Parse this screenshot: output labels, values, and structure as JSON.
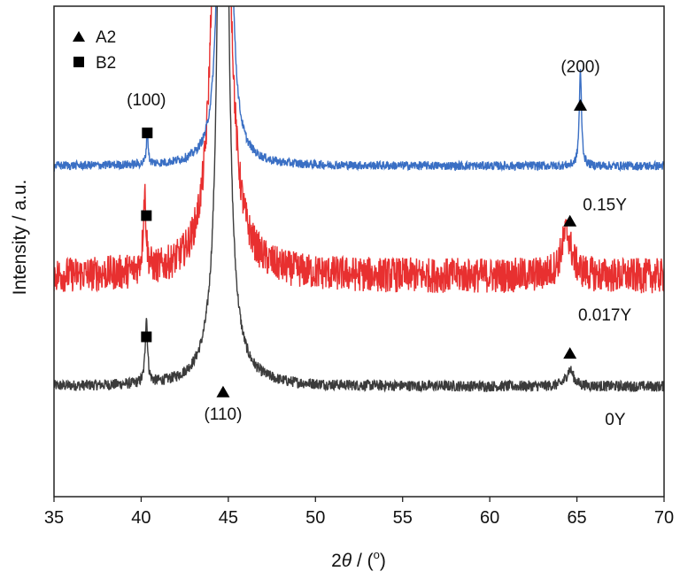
{
  "chart_data": {
    "type": "line",
    "title": "",
    "xlabel": "2θ / (°)",
    "xlabel_parts": {
      "var": "2",
      "theta": "θ",
      "rest": " / (",
      "deg": "o",
      "close": ")"
    },
    "ylabel": "Intensity / a.u.",
    "xlim": [
      35,
      70
    ],
    "xticks": [
      35,
      40,
      45,
      50,
      55,
      60,
      65,
      70
    ],
    "yticks_shown": false,
    "grid": false,
    "legend": {
      "placement": "top-left",
      "entries": [
        {
          "marker": "triangle",
          "label": "A2"
        },
        {
          "marker": "square",
          "label": "B2"
        }
      ]
    },
    "series": [
      {
        "name": "0Y",
        "color": "#3b3b3b",
        "baseline": 1.0,
        "noise": 0.05,
        "peaks": [
          {
            "x": 40.3,
            "height": 0.6,
            "width": 0.08
          },
          {
            "x": 44.7,
            "height": 21.0,
            "width": 0.12
          },
          {
            "x": 44.7,
            "height": 1.6,
            "width": 0.5
          },
          {
            "x": 64.6,
            "height": 0.15,
            "width": 0.25
          }
        ]
      },
      {
        "name": "0.017Y",
        "color": "#e83030",
        "baseline": 2.0,
        "noise": 0.16,
        "peaks": [
          {
            "x": 40.2,
            "height": 0.7,
            "width": 0.1
          },
          {
            "x": 44.6,
            "height": 24.0,
            "width": 0.12
          },
          {
            "x": 44.6,
            "height": 4.0,
            "width": 0.45
          },
          {
            "x": 64.4,
            "height": 0.4,
            "width": 0.35
          }
        ]
      },
      {
        "name": "0.15Y",
        "color": "#3a6fc4",
        "baseline": 3.0,
        "noise": 0.04,
        "peaks": [
          {
            "x": 40.35,
            "height": 0.3,
            "width": 0.06
          },
          {
            "x": 44.8,
            "height": 40.0,
            "width": 0.1
          },
          {
            "x": 65.2,
            "height": 0.85,
            "width": 0.08
          }
        ]
      }
    ],
    "annotations": [
      {
        "text": "(100)",
        "x": 40.3,
        "y": 3.55
      },
      {
        "text": "(200)",
        "x": 65.2,
        "y": 3.85
      },
      {
        "text": "(110)",
        "x": 44.7,
        "y": 0.7
      },
      {
        "text": "0.15Y",
        "x": 66.6,
        "y": 2.6
      },
      {
        "text": "0.017Y",
        "x": 66.6,
        "y": 1.6
      },
      {
        "text": "0Y",
        "x": 67.2,
        "y": 0.65
      }
    ],
    "markers": [
      {
        "shape": "square",
        "phase": "B2",
        "x": 40.35,
        "y": 3.3
      },
      {
        "shape": "triangle",
        "phase": "A2",
        "x": 65.2,
        "y": 3.55
      },
      {
        "shape": "square",
        "phase": "B2",
        "x": 40.3,
        "y": 2.55
      },
      {
        "shape": "triangle",
        "phase": "A2",
        "x": 64.6,
        "y": 2.5
      },
      {
        "shape": "square",
        "phase": "B2",
        "x": 40.3,
        "y": 1.45
      },
      {
        "shape": "triangle",
        "phase": "A2",
        "x": 64.6,
        "y": 1.3
      },
      {
        "shape": "triangle",
        "phase": "A2",
        "x": 44.7,
        "y": 0.95
      }
    ]
  }
}
